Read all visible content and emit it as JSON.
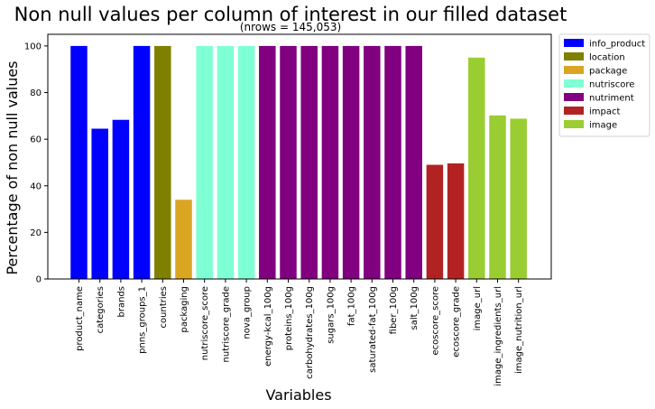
{
  "chart_data": {
    "type": "bar",
    "title": "Non null values per column of interest in our filled dataset",
    "subtitle": "(nrows = 145,053)",
    "xlabel": "Variables",
    "ylabel": "Percentage of non null values",
    "ylim": [
      0,
      105
    ],
    "yticks": [
      0,
      20,
      40,
      60,
      80,
      100
    ],
    "grid": false,
    "legend_position": "outside-top-right",
    "categories": [
      "product_name",
      "categories",
      "brands",
      "pnns_groups_1",
      "countries",
      "packaging",
      "nutriscore_score",
      "nutriscore_grade",
      "nova_group",
      "energy-kcal_100g",
      "proteins_100g",
      "carbohydrates_100g",
      "sugars_100g",
      "fat_100g",
      "saturated-fat_100g",
      "fiber_100g",
      "salt_100g",
      "ecoscore_score",
      "ecoscore_grade",
      "image_url",
      "image_ingredients_url",
      "image_nutrition_url"
    ],
    "values": [
      100,
      64.5,
      68.3,
      100,
      100,
      34,
      100,
      100,
      100,
      100,
      100,
      100,
      100,
      100,
      100,
      100,
      100,
      49,
      49.6,
      95,
      70.2,
      68.8
    ],
    "groups": [
      "info_product",
      "info_product",
      "info_product",
      "info_product",
      "location",
      "package",
      "nutriscore",
      "nutriscore",
      "nutriscore",
      "nutriment",
      "nutriment",
      "nutriment",
      "nutriment",
      "nutriment",
      "nutriment",
      "nutriment",
      "nutriment",
      "impact",
      "impact",
      "image",
      "image",
      "image"
    ],
    "legend": [
      {
        "name": "info_product",
        "color": "#0000ff"
      },
      {
        "name": "location",
        "color": "#808000"
      },
      {
        "name": "package",
        "color": "#daa520"
      },
      {
        "name": "nutriscore",
        "color": "#7fffd4"
      },
      {
        "name": "nutriment",
        "color": "#800080"
      },
      {
        "name": "impact",
        "color": "#b22222"
      },
      {
        "name": "image",
        "color": "#9acd32"
      }
    ]
  }
}
